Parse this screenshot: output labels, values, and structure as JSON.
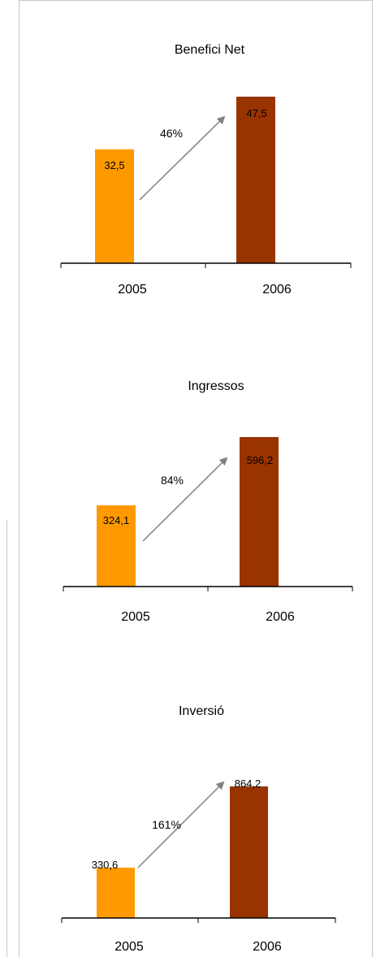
{
  "chart_data": [
    {
      "type": "bar",
      "title": "Benefici Net",
      "categories": [
        "2005",
        "2006"
      ],
      "values": [
        32.5,
        47.5
      ],
      "data_labels": [
        "32,5",
        "47,5"
      ],
      "growth_label": "46%",
      "colors": [
        "#ff9900",
        "#993300"
      ]
    },
    {
      "type": "bar",
      "title": "Ingressos",
      "categories": [
        "2005",
        "2006"
      ],
      "values": [
        324.1,
        596.2
      ],
      "data_labels": [
        "324,1",
        "596,2"
      ],
      "growth_label": "84%",
      "colors": [
        "#ff9900",
        "#993300"
      ]
    },
    {
      "type": "bar",
      "title": "Inversió",
      "categories": [
        "2005",
        "2006"
      ],
      "values": [
        330.6,
        864.2
      ],
      "data_labels": [
        "330,6",
        "864,2"
      ],
      "growth_label": "161%",
      "colors": [
        "#ff9900",
        "#993300"
      ]
    }
  ],
  "style": {
    "axis_color": "#000000",
    "arrow_color": "#808080"
  }
}
